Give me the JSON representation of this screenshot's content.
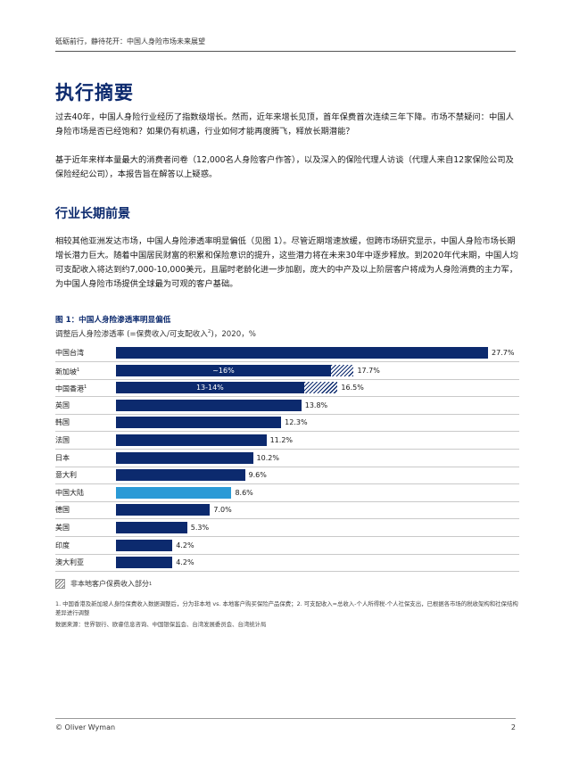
{
  "header": {
    "running_title": "砥砺前行，静待花开：中国人身险市场未来展望"
  },
  "title": "执行摘要",
  "intro": {
    "p1": "过去40年，中国人身险行业经历了指数级增长。然而，近年来增长见顶，首年保费首次连续三年下降。市场不禁疑问：中国人身险市场是否已经饱和？如果仍有机遇，行业如何才能再度腾飞，释放长期潜能？",
    "p2": "基于近年来样本量最大的消费者问卷（12,000名人身险客户作答），以及深入的保险代理人访谈（代理人来自12家保险公司及保险经纪公司），本报告旨在解答以上疑惑。"
  },
  "section": {
    "title": "行业长期前景",
    "p1": "相较其他亚洲发达市场，中国人身险渗透率明显偏低（见图 1）。尽管近期增速放缓，但跨市场研究显示，中国人身险市场长期增长潜力巨大。随着中国居民财富的积累和保险意识的提升，这些潜力将在未来30年中逐步释放。到2020年代末期，中国人均可支配收入将达到约7,000-10,000美元，且届时老龄化进一步加剧，庞大的中产及以上阶层客户将成为人身险消费的主力军，为中国人身险市场提供全球最为可观的客户基础。"
  },
  "figure": {
    "title": "图 1：中国人身险渗透率明显偏低",
    "subtitle_main": "调整后人身险渗透率 (=保费收入/可支配收入",
    "subtitle_sup": "2",
    "subtitle_tail": ")，2020，%"
  },
  "chart_data": {
    "type": "bar",
    "orientation": "horizontal",
    "unit": "%",
    "xlim": [
      0,
      27.7
    ],
    "categories": [
      "中国台湾",
      "新加坡",
      "中国香港",
      "英国",
      "韩国",
      "法国",
      "日本",
      "意大利",
      "中国大陆",
      "德国",
      "美国",
      "印度",
      "澳大利亚"
    ],
    "category_sup": [
      "",
      "1",
      "1",
      "",
      "",
      "",
      "",
      "",
      "",
      "",
      "",
      "",
      ""
    ],
    "values": [
      27.7,
      17.7,
      16.5,
      13.8,
      12.3,
      11.2,
      10.2,
      9.6,
      8.6,
      7.0,
      5.3,
      4.2,
      4.2
    ],
    "value_labels": [
      "27.7%",
      "17.7%",
      "16.5%",
      "13.8%",
      "12.3%",
      "11.2%",
      "10.2%",
      "9.6%",
      "8.6%",
      "7.0%",
      "5.3%",
      "4.2%",
      "4.2%"
    ],
    "local_share": [
      null,
      16,
      14,
      null,
      null,
      null,
      null,
      null,
      null,
      null,
      null,
      null,
      null
    ],
    "inbar_labels": [
      "",
      "~16%",
      "13-14%",
      "",
      "",
      "",
      "",
      "",
      "",
      "",
      "",
      "",
      ""
    ],
    "highlight_index": 8,
    "colors": {
      "bar": "#0c2a6e",
      "highlight": "#2b9ad6",
      "hatch": "#0c2a6e"
    },
    "legend": {
      "label": "非本地客户保费收入部分",
      "sup": "1"
    }
  },
  "notes": {
    "footnote": "1. 中国香港及新加坡人身险保费收入数据调整后，分为非本地 vs. 本地客户购买保险产品保费；2. 可支配收入=总收入-个人所得税-个人社保支出，已根据各市场的税收架构和社保结构差异进行调整",
    "source": "数据来源：世界银行、欧睿信息咨询、中国银保监会、台湾发展委员会、台湾统计局"
  },
  "footer": {
    "copyright": "© Oliver Wyman",
    "page_number": "2"
  }
}
